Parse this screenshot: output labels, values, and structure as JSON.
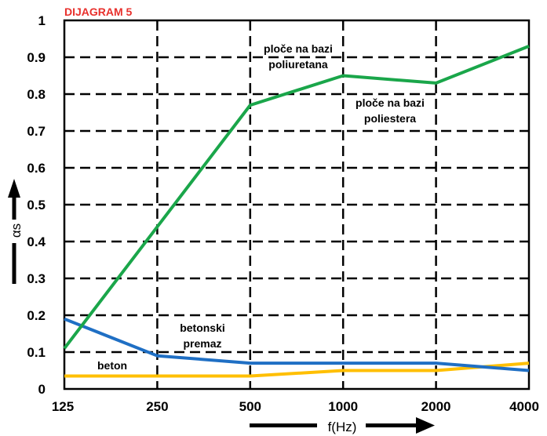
{
  "chart_data": {
    "type": "line",
    "title": "DIJAGRAM 5",
    "xlabel": "f(Hz)",
    "ylabel": "αs",
    "x_scale": "log2",
    "categories": [
      "125",
      "250",
      "500",
      "1000",
      "2000",
      "4000"
    ],
    "x": [
      125,
      250,
      500,
      1000,
      2000,
      4000
    ],
    "yticks": [
      "0",
      "0.1",
      "0.2",
      "0.3",
      "0.4",
      "0.5",
      "0.6",
      "0.7",
      "0.8",
      "0.9",
      "1"
    ],
    "ylim": [
      0,
      1
    ],
    "grid": true,
    "series": [
      {
        "name": "ploče na bazi poliuretana",
        "color": "#1aa64a",
        "values": [
          0.11,
          0.44,
          0.77,
          0.85,
          0.83,
          0.93
        ]
      },
      {
        "name": "betonski premaz",
        "color": "#1f6fc4",
        "values": [
          0.19,
          0.09,
          0.07,
          0.07,
          0.07,
          0.05
        ]
      },
      {
        "name": "beton",
        "color": "#ffbf00",
        "values": [
          0.035,
          0.035,
          0.035,
          0.05,
          0.05,
          0.07
        ]
      }
    ],
    "annotations": [
      {
        "lines": [
          "ploče na bazi",
          "poliuretana"
        ]
      },
      {
        "lines": [
          "ploče na bazi",
          "poliestera"
        ]
      },
      {
        "lines": [
          "betonski",
          "premaz"
        ]
      },
      {
        "lines": [
          "beton"
        ]
      }
    ]
  }
}
